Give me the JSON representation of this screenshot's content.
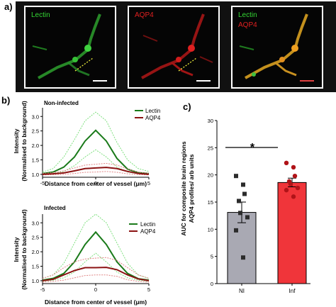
{
  "panel_a": {
    "letter": "a)",
    "images": [
      {
        "labels": [
          "Lectin"
        ],
        "label_colors": [
          "#34d634"
        ]
      },
      {
        "labels": [
          "AQP4"
        ],
        "label_colors": [
          "#e02020"
        ]
      },
      {
        "labels": [
          "Lectin",
          "AQP4"
        ],
        "label_colors": [
          "#34d634",
          "#e02020"
        ]
      }
    ]
  },
  "panel_b": {
    "letter": "b)",
    "colors": {
      "lectin": "#1a7a1a",
      "aqp4": "#8b1212",
      "lectin_band": "#7fe07f",
      "aqp4_band": "#e08585"
    },
    "plots": [
      {
        "title": "Non-infected",
        "ylabel": [
          "Intensity",
          "(Normalised to background)"
        ],
        "xlabel": "Distance from center of vessel (μm)",
        "legend": [
          "Lectin",
          "AQP4"
        ],
        "yticks": [
          "1.0",
          "1.5",
          "2.0",
          "2.5",
          "3.0"
        ],
        "xticks": [
          "-5",
          "0",
          "5"
        ]
      },
      {
        "title": "Infected",
        "ylabel": [
          "Intensity",
          "(Normalised to background)"
        ],
        "xlabel": "Distance from center of vessel (μm)",
        "legend": [
          "Lectin",
          "AQP4"
        ],
        "yticks": [
          "1.0",
          "1.5",
          "2.0",
          "2.5",
          "3.0"
        ],
        "xticks": [
          "-5",
          "0",
          "5"
        ]
      }
    ]
  },
  "panel_c": {
    "letter": "c)",
    "ylabel": [
      "AUC for composite brain regions",
      "AQP4 profiles/ arb units"
    ],
    "yticks": [
      "0",
      "5",
      "10",
      "15",
      "20",
      "25",
      "30"
    ],
    "significance": "*"
  },
  "chart_data": [
    {
      "type": "line",
      "title": "Non-infected",
      "xlabel": "Distance from center of vessel (μm)",
      "ylabel": "Intensity (Normalised to background)",
      "xlim": [
        -5,
        5
      ],
      "ylim": [
        0.9,
        3.3
      ],
      "x": [
        -5,
        -4,
        -3,
        -2,
        -1,
        0,
        1,
        2,
        3,
        4,
        5
      ],
      "series": [
        {
          "name": "Lectin",
          "values": [
            1.03,
            1.08,
            1.25,
            1.6,
            2.15,
            2.52,
            2.15,
            1.55,
            1.18,
            1.06,
            1.03
          ],
          "upper": [
            1.08,
            1.2,
            1.6,
            2.2,
            2.85,
            3.15,
            2.85,
            2.1,
            1.5,
            1.2,
            1.1
          ],
          "lower": [
            1.0,
            1.03,
            1.1,
            1.3,
            1.6,
            1.85,
            1.6,
            1.25,
            1.08,
            1.02,
            1.0
          ]
        },
        {
          "name": "AQP4",
          "values": [
            1.0,
            1.02,
            1.05,
            1.12,
            1.2,
            1.22,
            1.24,
            1.2,
            1.1,
            1.03,
            1.0
          ],
          "upper": [
            1.03,
            1.06,
            1.12,
            1.22,
            1.32,
            1.35,
            1.38,
            1.32,
            1.18,
            1.08,
            1.04
          ],
          "lower": [
            0.98,
            0.99,
            1.0,
            1.03,
            1.07,
            1.08,
            1.1,
            1.07,
            1.02,
            0.99,
            0.98
          ]
        }
      ]
    },
    {
      "type": "line",
      "title": "Infected",
      "xlabel": "Distance from center of vessel (μm)",
      "ylabel": "Intensity (Normalised to background)",
      "xlim": [
        -5,
        5
      ],
      "ylim": [
        0.9,
        3.3
      ],
      "x": [
        -5,
        -4,
        -3,
        -2,
        -1,
        0,
        1,
        2,
        3,
        4,
        5
      ],
      "series": [
        {
          "name": "Lectin",
          "values": [
            1.02,
            1.08,
            1.25,
            1.65,
            2.25,
            2.68,
            2.25,
            1.65,
            1.25,
            1.07,
            1.02
          ],
          "upper": [
            1.08,
            1.2,
            1.6,
            2.3,
            3.0,
            3.3,
            3.0,
            2.3,
            1.6,
            1.2,
            1.08
          ],
          "lower": [
            0.98,
            1.02,
            1.1,
            1.3,
            1.65,
            1.95,
            1.65,
            1.3,
            1.1,
            1.02,
            0.98
          ]
        },
        {
          "name": "AQP4",
          "values": [
            1.0,
            1.05,
            1.2,
            1.35,
            1.45,
            1.45,
            1.46,
            1.38,
            1.2,
            1.06,
            1.0
          ],
          "upper": [
            1.08,
            1.2,
            1.45,
            1.65,
            1.75,
            1.78,
            1.8,
            1.7,
            1.45,
            1.2,
            1.08
          ],
          "lower": [
            0.95,
            0.98,
            1.02,
            1.1,
            1.18,
            1.2,
            1.2,
            1.15,
            1.03,
            0.98,
            0.95
          ]
        }
      ]
    },
    {
      "type": "bar",
      "categories": [
        "NI",
        "Inf"
      ],
      "ylabel": "AUC for composite brain regions AQP4 profiles/ arb units",
      "ylim": [
        0,
        30
      ],
      "values": [
        13.1,
        18.6
      ],
      "errors": [
        1.9,
        0.8
      ],
      "colors": [
        "#a9a9b3",
        "#f0353a"
      ],
      "points": [
        [
          19.8,
          18.2,
          16.5,
          15.2,
          13.0,
          12.2,
          9.8,
          4.8
        ],
        [
          22.2,
          21.4,
          19.8,
          18.8,
          18.3,
          17.6,
          17.2,
          16.0
        ]
      ]
    }
  ]
}
